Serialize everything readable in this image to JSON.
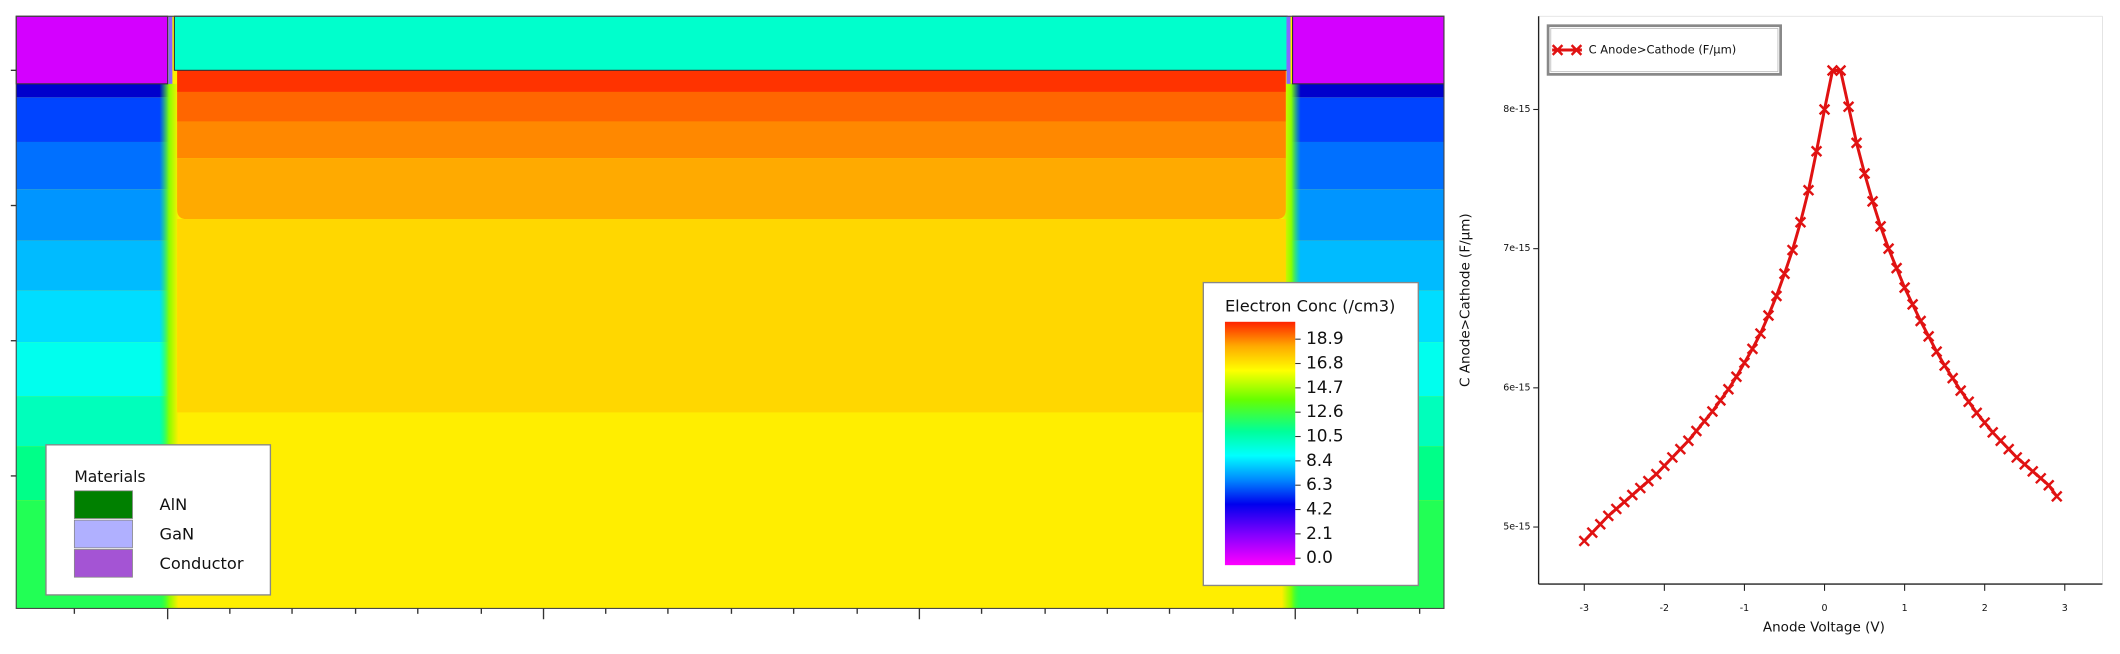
{
  "chart_data": [
    {
      "type": "contour",
      "colorbar_title": "Electron Conc (/cm3)",
      "colorbar_lim": [
        -0.6,
        20.4
      ],
      "colorbar_ticks": [
        18.9,
        16.8,
        14.7,
        12.6,
        10.5,
        8.4,
        6.3,
        4.2,
        2.1,
        {
          "value": 0,
          "label": "0.0"
        }
      ],
      "legend_title": "Materials",
      "materials": [
        {
          "name": "AlN",
          "color": "#008000"
        },
        {
          "name": "GaN",
          "color": "#b0b0ff"
        },
        {
          "name": "Conductor",
          "color": "#a454d4"
        }
      ]
    },
    {
      "type": "line",
      "xlabel": "Anode Voltage (V)",
      "ylabel": "C Anode>Cathode (F/µm)",
      "xlim": [
        -3.57,
        3.47
      ],
      "ylim": [
        4.59e-15,
        8.67e-15
      ],
      "xticks": [
        -3,
        -2,
        -1,
        0,
        1,
        2,
        3
      ],
      "yticks": [
        5e-15,
        6e-15,
        7e-15,
        8e-15
      ],
      "legend": "upper left",
      "x": [
        -3.0,
        -2.9,
        -2.8,
        -2.7,
        -2.6,
        -2.5,
        -2.4,
        -2.3,
        -2.2,
        -2.1,
        -2.0,
        -1.9,
        -1.8,
        -1.7,
        -1.6,
        -1.5,
        -1.4,
        -1.3,
        -1.2,
        -1.1,
        -1.0,
        -0.9,
        -0.8,
        -0.7,
        -0.6,
        -0.5,
        -0.4,
        -0.3,
        -0.2,
        -0.1,
        0.0,
        0.1,
        0.2,
        0.3,
        0.4,
        0.5,
        0.6,
        0.7,
        0.8,
        0.9,
        1.0,
        1.1,
        1.2,
        1.3,
        1.4,
        1.5,
        1.6,
        1.7,
        1.8,
        1.9,
        2.0,
        2.1,
        2.2,
        2.3,
        2.4,
        2.5,
        2.6,
        2.7,
        2.8,
        2.9
      ],
      "series": [
        {
          "name": "C Anode>Cathode (F/µm)",
          "color": "#e01212",
          "values": [
            4.9e-15,
            4.96e-15,
            5.02e-15,
            5.08e-15,
            5.13e-15,
            5.18e-15,
            5.23e-15,
            5.28e-15,
            5.33e-15,
            5.38e-15,
            5.44e-15,
            5.5e-15,
            5.56e-15,
            5.62e-15,
            5.69e-15,
            5.76e-15,
            5.83e-15,
            5.91e-15,
            5.99e-15,
            6.08e-15,
            6.18e-15,
            6.28e-15,
            6.39e-15,
            6.52e-15,
            6.66e-15,
            6.82e-15,
            6.99e-15,
            7.19e-15,
            7.42e-15,
            7.7e-15,
            8e-15,
            8.28e-15,
            8.28e-15,
            8.02e-15,
            7.76e-15,
            7.54e-15,
            7.34e-15,
            7.16e-15,
            7e-15,
            6.86e-15,
            6.72e-15,
            6.6e-15,
            6.48e-15,
            6.37e-15,
            6.26e-15,
            6.16e-15,
            6.07e-15,
            5.98e-15,
            5.9e-15,
            5.82e-15,
            5.75e-15,
            5.68e-15,
            5.62e-15,
            5.56e-15,
            5.5e-15,
            5.45e-15,
            5.4e-15,
            5.35e-15,
            5.3e-15,
            5.22e-15
          ]
        }
      ]
    }
  ]
}
